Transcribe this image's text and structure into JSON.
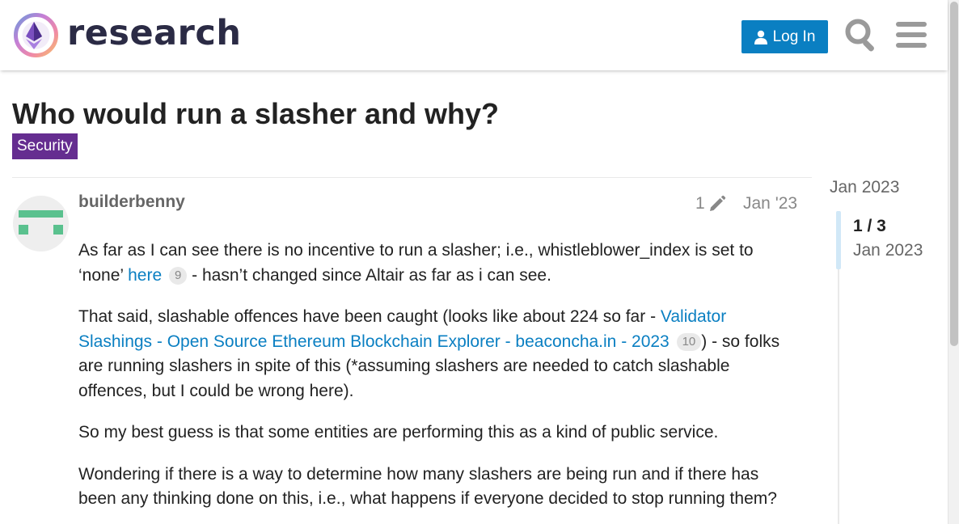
{
  "header": {
    "site_name": "research",
    "login_label": "Log In",
    "search_icon": "search-icon",
    "menu_icon": "hamburger-menu-icon"
  },
  "topic": {
    "title": "Who would run a slasher and why?",
    "category": "Security",
    "category_color": "#652d90"
  },
  "post": {
    "username": "builderbenny",
    "edit_count": "1",
    "date": "Jan '23",
    "p1_a": "As far as I can see there is no incentive to run a slasher; i.e., whistleblower_index is set to ‘none’ ",
    "p1_link": "here",
    "p1_clicks": "9",
    "p1_b": " - hasn’t changed since Altair as far as i can see.",
    "p2_a": "That said, slashable offences have been caught (looks like about 224 so far - ",
    "p2_link": "Validator Slashings - Open Source Ethereum Blockchain Explorer - beaconcha.in - 2023",
    "p2_clicks": "10",
    "p2_b": ") - so folks are running slashers in spite of this (*assuming slashers are needed to catch slashable offences, but I could be wrong here).",
    "p3": "So my best guess is that some entities are performing this as a kind of public service.",
    "p4": "Wondering if there is a way to determine how many slashers are being run and if there has been any thinking done on this, i.e., what happens if everyone decided to stop running them?"
  },
  "timeline": {
    "top_date": "Jan 2023",
    "position": "1 / 3",
    "current_date": "Jan 2023"
  },
  "colors": {
    "accent": "#0a7fc2",
    "text": "#222222",
    "muted": "#888888"
  }
}
